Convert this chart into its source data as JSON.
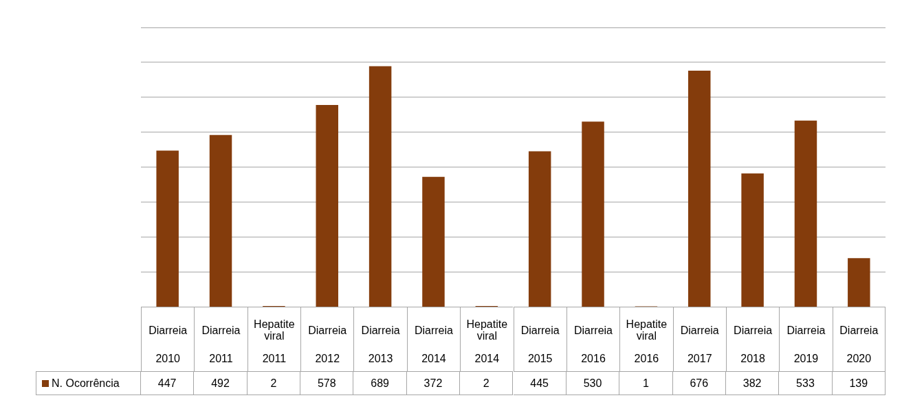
{
  "chart_data": {
    "type": "bar",
    "categories": [
      "Diarreia 2010",
      "Diarreia 2011",
      "Hepatite viral 2011",
      "Diarreia 2012",
      "Diarreia 2013",
      "Diarreia 2014",
      "Hepatite viral 2014",
      "Diarreia 2015",
      "Diarreia 2016",
      "Hepatite viral 2016",
      "Diarreia 2017",
      "Diarreia 2018",
      "Diarreia 2019",
      "Diarreia 2020"
    ],
    "series": [
      {
        "name": "N. Ocorrência",
        "color": "#843c0c",
        "values": [
          447,
          492,
          2,
          578,
          689,
          372,
          2,
          445,
          530,
          1,
          676,
          382,
          533,
          139
        ]
      }
    ],
    "ylim": [
      0,
      800
    ],
    "yticks": [
      {
        "value": 100,
        "label": null
      },
      {
        "value": 200,
        "label": null
      },
      {
        "value": 300,
        "label": null
      },
      {
        "value": 400,
        "label": null
      },
      {
        "value": 500,
        "label": null
      },
      {
        "value": 600,
        "label": null
      },
      {
        "value": 700,
        "label": null
      },
      {
        "value": 800,
        "label": null
      }
    ],
    "grid": "y",
    "tick_labels": "x",
    "legend": "bottom",
    "data_labels": true
  }
}
